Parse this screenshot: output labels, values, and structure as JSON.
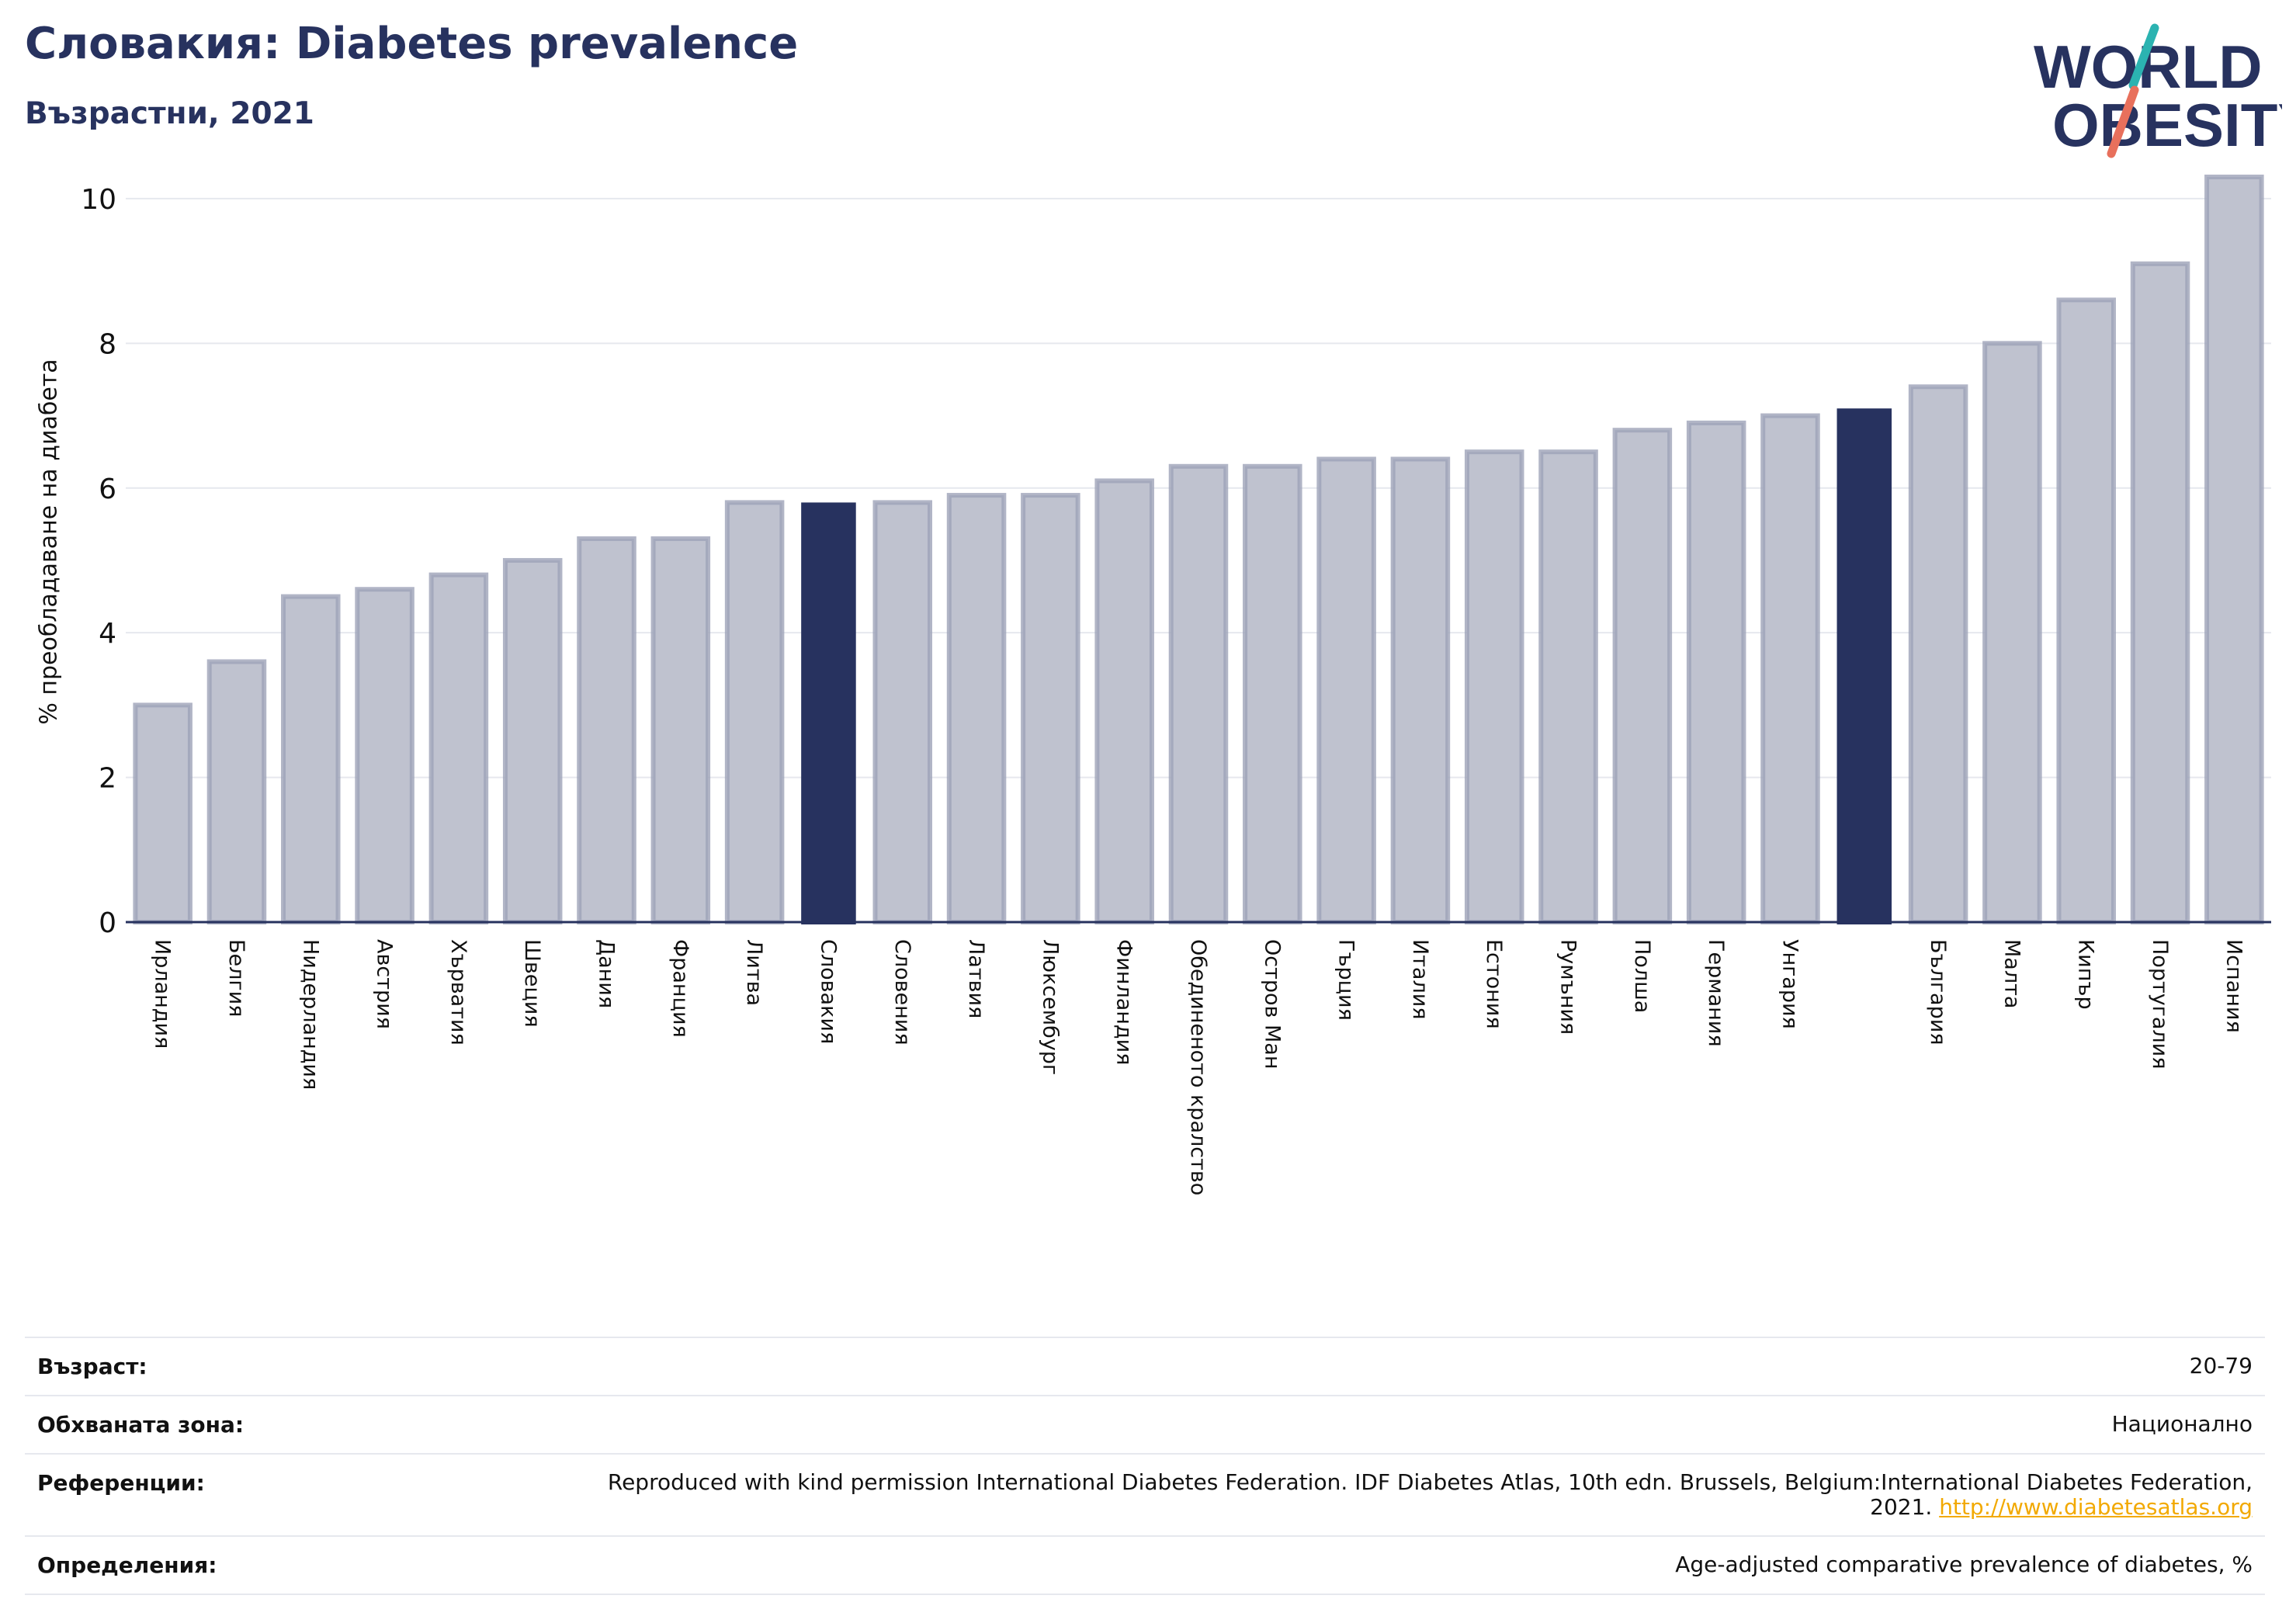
{
  "header": {
    "title": "Словакия: Diabetes prevalence",
    "subtitle": "Възрастни, 2021"
  },
  "logo": {
    "line1": "WORLD",
    "line2": "OBESITY",
    "colors": {
      "text": "#27325f",
      "slash_top": "#2bb3b1",
      "slash_bottom": "#e8705c"
    }
  },
  "colors": {
    "bar_default": "#bfc2cf",
    "bar_default_stroke": "#9ea3b8",
    "bar_highlight": "#27325f",
    "grid": "#e6e8ee",
    "axis": "#27325f"
  },
  "chart_data": {
    "type": "bar",
    "ylabel": "% преобладаване на диабета",
    "ylim": [
      0,
      10.6
    ],
    "yticks": [
      0,
      2,
      4,
      6,
      8,
      10
    ],
    "grid": true,
    "categories": [
      "Ирландия",
      "Белгия",
      "Нидерландия",
      "Австрия",
      "Хърватия",
      "Швеция",
      "Дания",
      "Франция",
      "Литва",
      "Словакия",
      "Словения",
      "Латвия",
      "Люксембург",
      "Финландия",
      "Обединеното кралство",
      "Остров Ман",
      "Гърция",
      "Италия",
      "Естония",
      "Румъния",
      "Полша",
      "Германия",
      "Унгария",
      "",
      "България",
      "Малта",
      "Кипър",
      "Португалия",
      "Испания"
    ],
    "values": [
      3.0,
      3.6,
      4.5,
      4.6,
      4.8,
      5.0,
      5.3,
      5.3,
      5.8,
      5.8,
      5.8,
      5.9,
      5.9,
      6.1,
      6.3,
      6.3,
      6.4,
      6.4,
      6.5,
      6.5,
      6.8,
      6.9,
      7.0,
      7.1,
      7.4,
      8.0,
      8.6,
      9.1,
      10.3
    ],
    "highlight": [
      9,
      23
    ]
  },
  "info": [
    {
      "label": "Възраст:",
      "value": "20-79"
    },
    {
      "label": "Обхваната зона:",
      "value": "Национално"
    },
    {
      "label": "Референции:",
      "value": "Reproduced with kind permission International Diabetes Federation.  IDF Diabetes Atlas, 10th edn. Brussels, Belgium:International Diabetes Federation, 2021. ",
      "link": "http://www.diabetesatlas.org"
    },
    {
      "label": "Определения:",
      "value": "Age-adjusted comparative prevalence of diabetes, %"
    }
  ]
}
